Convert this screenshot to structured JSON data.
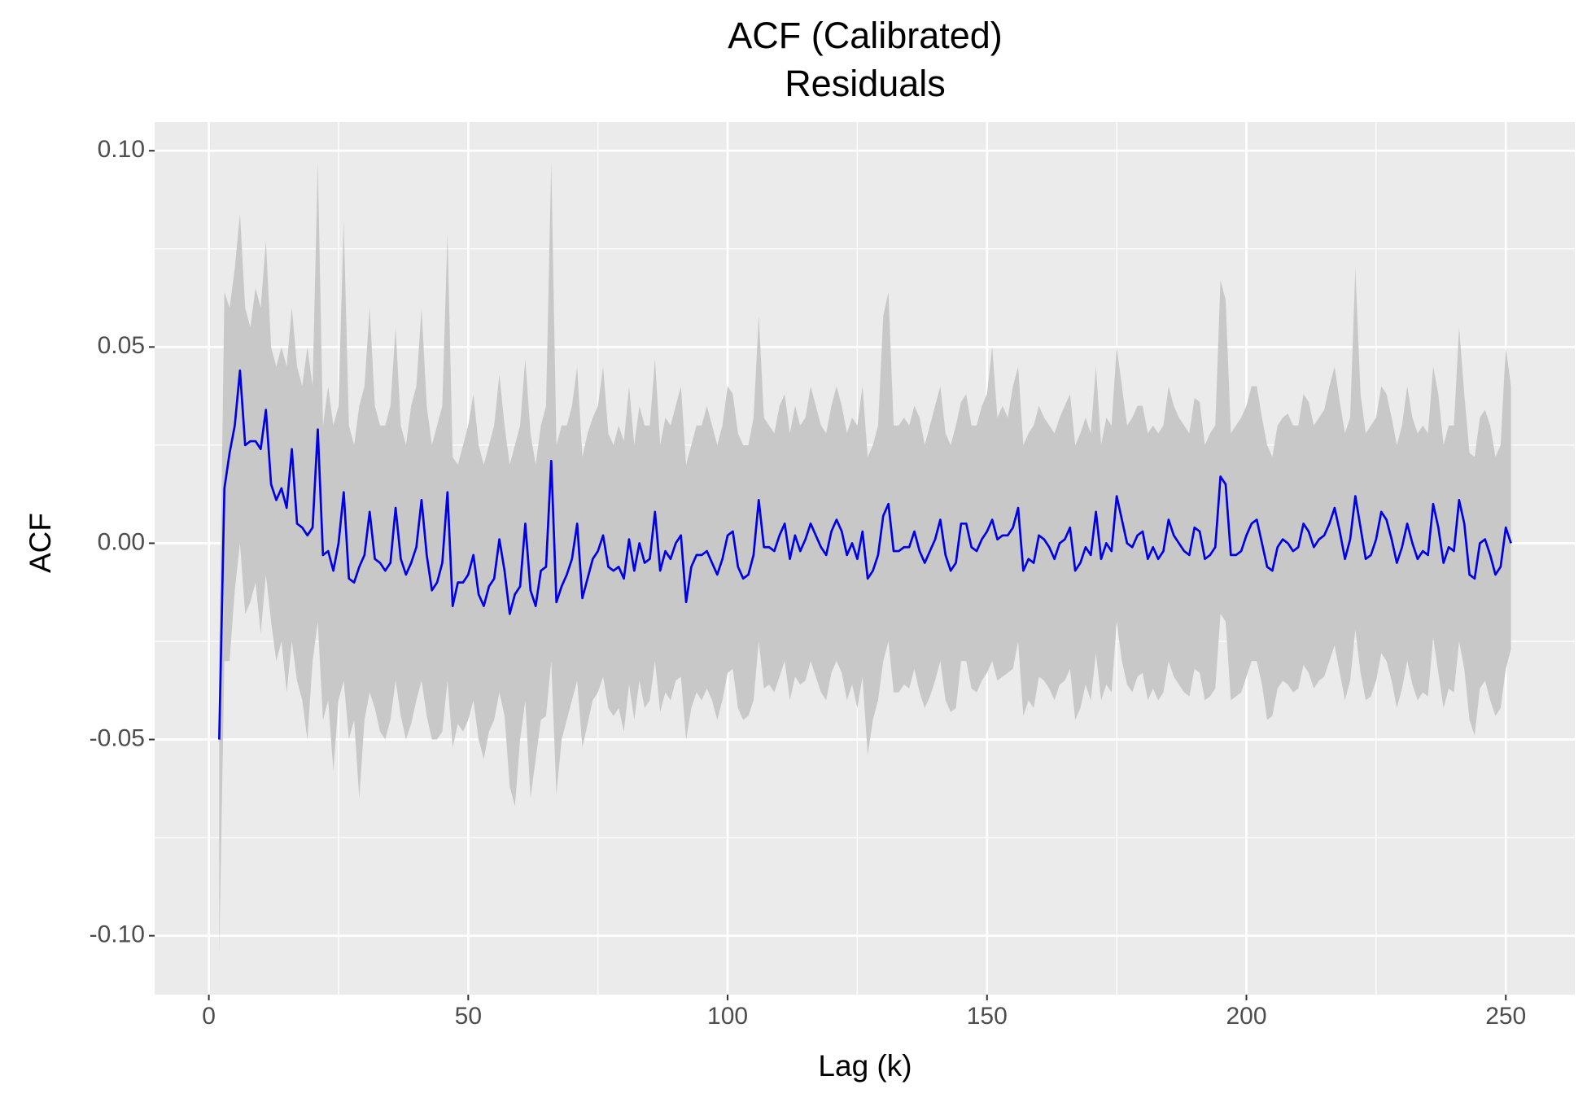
{
  "chart_data": {
    "type": "line",
    "title": [
      "ACF (Calibrated)",
      "Residuals"
    ],
    "x_label": "Lag (k)",
    "y_label": "ACF",
    "xlim": [
      -10.45,
      263.3
    ],
    "ylim": [
      -0.115,
      0.1073
    ],
    "xticks": [
      0,
      50,
      100,
      150,
      200,
      250
    ],
    "yticks": [
      {
        "value": -0.1,
        "label": "-0.10"
      },
      -0.05,
      {
        "value": 0,
        "label": "0.00"
      },
      0.05,
      {
        "value": 0.1,
        "label": "0.10"
      }
    ],
    "minor_xticks": [
      25,
      75,
      125,
      175,
      225
    ],
    "minor_yticks": [
      -0.075,
      -0.025,
      0.025,
      0.075
    ],
    "grid": true,
    "color": "#0000e6",
    "band_color": "#c8c8c8",
    "x": [
      2,
      3,
      4,
      5,
      6,
      7,
      8,
      9,
      10,
      11,
      12,
      13,
      14,
      15,
      16,
      17,
      18,
      19,
      20,
      21,
      22,
      23,
      24,
      25,
      26,
      27,
      28,
      29,
      30,
      31,
      32,
      33,
      34,
      35,
      36,
      37,
      38,
      39,
      40,
      41,
      42,
      43,
      44,
      45,
      46,
      47,
      48,
      49,
      50,
      51,
      52,
      53,
      54,
      55,
      56,
      57,
      58,
      59,
      60,
      61,
      62,
      63,
      64,
      65,
      66,
      67,
      68,
      69,
      70,
      71,
      72,
      73,
      74,
      75,
      76,
      77,
      78,
      79,
      80,
      81,
      82,
      83,
      84,
      85,
      86,
      87,
      88,
      89,
      90,
      91,
      92,
      93,
      94,
      95,
      96,
      97,
      98,
      99,
      100,
      101,
      102,
      103,
      104,
      105,
      106,
      107,
      108,
      109,
      110,
      111,
      112,
      113,
      114,
      115,
      116,
      117,
      118,
      119,
      120,
      121,
      122,
      123,
      124,
      125,
      126,
      127,
      128,
      129,
      130,
      131,
      132,
      133,
      134,
      135,
      136,
      137,
      138,
      139,
      140,
      141,
      142,
      143,
      144,
      145,
      146,
      147,
      148,
      149,
      150,
      151,
      152,
      153,
      154,
      155,
      156,
      157,
      158,
      159,
      160,
      161,
      162,
      163,
      164,
      165,
      166,
      167,
      168,
      169,
      170,
      171,
      172,
      173,
      174,
      175,
      176,
      177,
      178,
      179,
      180,
      181,
      182,
      183,
      184,
      185,
      186,
      187,
      188,
      189,
      190,
      191,
      192,
      193,
      194,
      195,
      196,
      197,
      198,
      199,
      200,
      201,
      202,
      203,
      204,
      205,
      206,
      207,
      208,
      209,
      210,
      211,
      212,
      213,
      214,
      215,
      216,
      217,
      218,
      219,
      220,
      221,
      222,
      223,
      224,
      225,
      226,
      227,
      228,
      229,
      230,
      231,
      232,
      233,
      234,
      235,
      236,
      237,
      238,
      239,
      240,
      241,
      242,
      243,
      244,
      245,
      246,
      247,
      248,
      249,
      250,
      251
    ],
    "values": [
      -0.05,
      0.014,
      0.023,
      0.03,
      0.044,
      0.025,
      0.026,
      0.026,
      0.024,
      0.034,
      0.015,
      0.011,
      0.014,
      0.009,
      0.024,
      0.005,
      0.004,
      0.002,
      0.004,
      0.029,
      -0.003,
      -0.002,
      -0.007,
      0.0,
      0.013,
      -0.009,
      -0.01,
      -0.006,
      -0.003,
      0.008,
      -0.004,
      -0.005,
      -0.007,
      -0.005,
      0.009,
      -0.004,
      -0.008,
      -0.005,
      -0.001,
      0.011,
      -0.003,
      -0.012,
      -0.01,
      -0.005,
      0.013,
      -0.016,
      -0.01,
      -0.01,
      -0.008,
      -0.003,
      -0.013,
      -0.016,
      -0.011,
      -0.009,
      0.001,
      -0.007,
      -0.018,
      -0.013,
      -0.011,
      0.005,
      -0.012,
      -0.016,
      -0.007,
      -0.006,
      0.021,
      -0.015,
      -0.011,
      -0.008,
      -0.004,
      0.005,
      -0.014,
      -0.009,
      -0.004,
      -0.002,
      0.002,
      -0.006,
      -0.007,
      -0.006,
      -0.009,
      0.001,
      -0.007,
      0.0,
      -0.005,
      -0.004,
      0.008,
      -0.007,
      -0.002,
      -0.004,
      0.0,
      0.002,
      -0.015,
      -0.006,
      -0.003,
      -0.003,
      -0.002,
      -0.005,
      -0.008,
      -0.004,
      0.002,
      0.003,
      -0.006,
      -0.009,
      -0.008,
      -0.003,
      0.011,
      -0.001,
      -0.001,
      -0.002,
      0.002,
      0.005,
      -0.004,
      0.002,
      -0.002,
      0.001,
      0.005,
      0.002,
      -0.001,
      -0.003,
      0.003,
      0.006,
      0.003,
      -0.003,
      0.0,
      -0.004,
      0.003,
      -0.009,
      -0.007,
      -0.003,
      0.007,
      0.01,
      -0.002,
      -0.002,
      -0.001,
      -0.001,
      0.003,
      -0.002,
      -0.005,
      -0.002,
      0.001,
      0.006,
      -0.003,
      -0.007,
      -0.005,
      0.005,
      0.005,
      -0.001,
      -0.002,
      0.001,
      0.003,
      0.006,
      0.001,
      0.002,
      0.002,
      0.004,
      0.009,
      -0.007,
      -0.004,
      -0.005,
      0.002,
      0.001,
      -0.001,
      -0.004,
      0.0,
      0.001,
      0.004,
      -0.007,
      -0.005,
      -0.001,
      -0.003,
      0.008,
      -0.004,
      0.0,
      -0.002,
      0.012,
      0.006,
      0.0,
      -0.001,
      0.002,
      0.003,
      -0.004,
      -0.001,
      -0.004,
      -0.002,
      0.006,
      0.002,
      0.0,
      -0.002,
      -0.003,
      0.004,
      0.003,
      -0.004,
      -0.003,
      -0.001,
      0.017,
      0.015,
      -0.003,
      -0.003,
      -0.002,
      0.002,
      0.005,
      0.006,
      0.0,
      -0.006,
      -0.007,
      -0.001,
      0.001,
      0.0,
      -0.002,
      -0.001,
      0.005,
      0.003,
      -0.001,
      0.001,
      0.002,
      0.005,
      0.009,
      0.003,
      -0.004,
      0.001,
      0.012,
      0.004,
      -0.004,
      -0.003,
      0.001,
      0.008,
      0.006,
      0.001,
      -0.005,
      -0.001,
      0.005,
      0.0,
      -0.004,
      -0.002,
      -0.003,
      0.01,
      0.004,
      -0.005,
      -0.001,
      -0.002,
      0.011,
      0.005,
      -0.008,
      -0.009,
      0.0,
      0.001,
      -0.003,
      -0.008,
      -0.006,
      0.004,
      0.0
    ],
    "upper": [
      -0.03,
      0.064,
      0.06,
      0.07,
      0.084,
      0.06,
      0.055,
      0.065,
      0.06,
      0.077,
      0.05,
      0.045,
      0.05,
      0.045,
      0.06,
      0.045,
      0.04,
      0.05,
      0.04,
      0.097,
      0.03,
      0.04,
      0.03,
      0.035,
      0.082,
      0.03,
      0.025,
      0.035,
      0.04,
      0.06,
      0.035,
      0.03,
      0.03,
      0.035,
      0.055,
      0.03,
      0.025,
      0.035,
      0.04,
      0.06,
      0.035,
      0.025,
      0.03,
      0.035,
      0.079,
      0.022,
      0.02,
      0.025,
      0.03,
      0.038,
      0.025,
      0.02,
      0.025,
      0.03,
      0.043,
      0.03,
      0.02,
      0.025,
      0.03,
      0.047,
      0.028,
      0.02,
      0.03,
      0.035,
      0.097,
      0.025,
      0.03,
      0.03,
      0.035,
      0.045,
      0.022,
      0.028,
      0.032,
      0.035,
      0.045,
      0.028,
      0.025,
      0.03,
      0.026,
      0.04,
      0.025,
      0.035,
      0.03,
      0.03,
      0.047,
      0.025,
      0.032,
      0.03,
      0.035,
      0.04,
      0.02,
      0.025,
      0.03,
      0.03,
      0.035,
      0.03,
      0.025,
      0.03,
      0.04,
      0.038,
      0.028,
      0.025,
      0.025,
      0.032,
      0.058,
      0.032,
      0.03,
      0.028,
      0.035,
      0.038,
      0.028,
      0.035,
      0.03,
      0.032,
      0.04,
      0.035,
      0.03,
      0.028,
      0.035,
      0.04,
      0.035,
      0.028,
      0.032,
      0.03,
      0.04,
      0.022,
      0.025,
      0.03,
      0.058,
      0.064,
      0.03,
      0.03,
      0.032,
      0.03,
      0.035,
      0.032,
      0.025,
      0.03,
      0.035,
      0.04,
      0.028,
      0.025,
      0.03,
      0.036,
      0.038,
      0.03,
      0.03,
      0.035,
      0.038,
      0.05,
      0.032,
      0.035,
      0.032,
      0.04,
      0.045,
      0.025,
      0.028,
      0.03,
      0.035,
      0.032,
      0.03,
      0.028,
      0.032,
      0.035,
      0.038,
      0.025,
      0.028,
      0.032,
      0.028,
      0.045,
      0.025,
      0.032,
      0.03,
      0.05,
      0.04,
      0.03,
      0.032,
      0.035,
      0.035,
      0.028,
      0.03,
      0.028,
      0.03,
      0.04,
      0.035,
      0.032,
      0.03,
      0.028,
      0.037,
      0.036,
      0.025,
      0.028,
      0.03,
      0.067,
      0.062,
      0.028,
      0.03,
      0.032,
      0.035,
      0.04,
      0.04,
      0.032,
      0.025,
      0.022,
      0.03,
      0.032,
      0.033,
      0.03,
      0.03,
      0.038,
      0.036,
      0.03,
      0.032,
      0.034,
      0.04,
      0.045,
      0.036,
      0.028,
      0.032,
      0.07,
      0.038,
      0.028,
      0.03,
      0.032,
      0.04,
      0.038,
      0.032,
      0.025,
      0.03,
      0.04,
      0.032,
      0.028,
      0.03,
      0.028,
      0.045,
      0.038,
      0.025,
      0.03,
      0.03,
      0.055,
      0.038,
      0.023,
      0.022,
      0.032,
      0.034,
      0.03,
      0.022,
      0.025,
      0.05,
      0.04
    ],
    "lower": [
      -0.105,
      -0.03,
      -0.03,
      -0.012,
      0.0,
      -0.018,
      -0.015,
      -0.01,
      -0.023,
      -0.008,
      -0.02,
      -0.03,
      -0.025,
      -0.038,
      -0.025,
      -0.035,
      -0.04,
      -0.05,
      -0.03,
      -0.02,
      -0.045,
      -0.04,
      -0.058,
      -0.04,
      -0.035,
      -0.05,
      -0.045,
      -0.065,
      -0.045,
      -0.038,
      -0.042,
      -0.048,
      -0.05,
      -0.045,
      -0.035,
      -0.044,
      -0.05,
      -0.046,
      -0.04,
      -0.035,
      -0.044,
      -0.05,
      -0.05,
      -0.048,
      -0.035,
      -0.052,
      -0.046,
      -0.048,
      -0.045,
      -0.04,
      -0.05,
      -0.055,
      -0.048,
      -0.045,
      -0.038,
      -0.044,
      -0.062,
      -0.067,
      -0.05,
      -0.04,
      -0.065,
      -0.055,
      -0.045,
      -0.044,
      -0.03,
      -0.064,
      -0.05,
      -0.045,
      -0.04,
      -0.035,
      -0.052,
      -0.046,
      -0.04,
      -0.038,
      -0.034,
      -0.042,
      -0.044,
      -0.042,
      -0.048,
      -0.036,
      -0.045,
      -0.035,
      -0.042,
      -0.04,
      -0.03,
      -0.043,
      -0.038,
      -0.04,
      -0.035,
      -0.034,
      -0.05,
      -0.042,
      -0.038,
      -0.04,
      -0.037,
      -0.04,
      -0.045,
      -0.04,
      -0.033,
      -0.032,
      -0.042,
      -0.045,
      -0.044,
      -0.04,
      -0.025,
      -0.037,
      -0.036,
      -0.038,
      -0.034,
      -0.03,
      -0.04,
      -0.034,
      -0.036,
      -0.035,
      -0.03,
      -0.034,
      -0.038,
      -0.04,
      -0.033,
      -0.03,
      -0.033,
      -0.04,
      -0.036,
      -0.042,
      -0.034,
      -0.054,
      -0.045,
      -0.04,
      -0.03,
      -0.025,
      -0.038,
      -0.038,
      -0.036,
      -0.037,
      -0.032,
      -0.038,
      -0.042,
      -0.039,
      -0.035,
      -0.03,
      -0.04,
      -0.043,
      -0.042,
      -0.03,
      -0.03,
      -0.037,
      -0.038,
      -0.035,
      -0.033,
      -0.03,
      -0.035,
      -0.034,
      -0.033,
      -0.032,
      -0.025,
      -0.044,
      -0.04,
      -0.042,
      -0.034,
      -0.035,
      -0.037,
      -0.04,
      -0.036,
      -0.035,
      -0.032,
      -0.045,
      -0.042,
      -0.036,
      -0.04,
      -0.028,
      -0.04,
      -0.036,
      -0.038,
      -0.02,
      -0.03,
      -0.036,
      -0.038,
      -0.034,
      -0.033,
      -0.04,
      -0.037,
      -0.04,
      -0.038,
      -0.03,
      -0.034,
      -0.036,
      -0.038,
      -0.039,
      -0.032,
      -0.033,
      -0.04,
      -0.039,
      -0.037,
      -0.018,
      -0.02,
      -0.04,
      -0.039,
      -0.038,
      -0.034,
      -0.03,
      -0.03,
      -0.036,
      -0.045,
      -0.044,
      -0.037,
      -0.035,
      -0.036,
      -0.038,
      -0.037,
      -0.031,
      -0.033,
      -0.037,
      -0.035,
      -0.034,
      -0.03,
      -0.026,
      -0.033,
      -0.04,
      -0.035,
      -0.022,
      -0.033,
      -0.04,
      -0.039,
      -0.035,
      -0.028,
      -0.03,
      -0.035,
      -0.042,
      -0.037,
      -0.03,
      -0.036,
      -0.04,
      -0.038,
      -0.039,
      -0.024,
      -0.033,
      -0.042,
      -0.037,
      -0.038,
      -0.025,
      -0.032,
      -0.045,
      -0.049,
      -0.037,
      -0.035,
      -0.04,
      -0.044,
      -0.042,
      -0.032,
      -0.027
    ]
  }
}
